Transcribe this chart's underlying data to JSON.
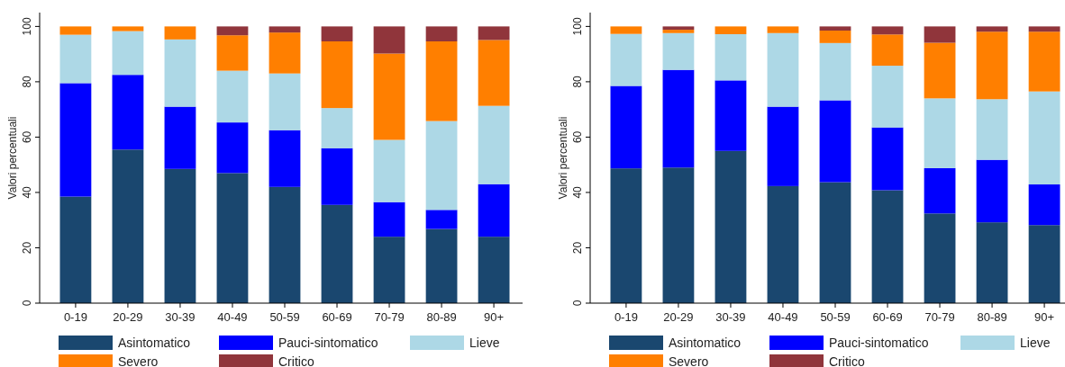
{
  "chart_data": [
    {
      "type": "bar",
      "stacked": true,
      "ylabel": "Valori percentuali",
      "categories": [
        "0-19",
        "20-29",
        "30-39",
        "40-49",
        "50-59",
        "60-69",
        "70-79",
        "80-89",
        "90+"
      ],
      "ylim": [
        0,
        105
      ],
      "yticks": [
        0,
        20,
        40,
        60,
        80,
        100
      ],
      "grid": false,
      "legend": "bottom",
      "series": [
        {
          "name": "Asintomatico",
          "color": "#1a476f",
          "values": [
            38.5,
            55.5,
            48.5,
            47,
            42,
            35.5,
            24,
            26.8,
            24
          ]
        },
        {
          "name": "Pauci-sintomatico",
          "color": "#0000ff",
          "values": [
            41,
            27,
            22.5,
            18.3,
            20.5,
            20.5,
            12.5,
            6.9,
            19
          ]
        },
        {
          "name": "Lieve",
          "color": "#add8e6",
          "values": [
            17.5,
            15.8,
            24.3,
            18.7,
            20.5,
            14.5,
            22.5,
            32.1,
            28.3
          ]
        },
        {
          "name": "Severo",
          "color": "#ff7f00",
          "values": [
            3,
            1.7,
            4.7,
            12.8,
            14.8,
            24.1,
            31.2,
            28.8,
            23.8
          ]
        },
        {
          "name": "Critico",
          "color": "#90353b",
          "values": [
            0,
            0,
            0,
            3.2,
            2.2,
            5.4,
            9.8,
            5.4,
            4.9
          ]
        }
      ]
    },
    {
      "type": "bar",
      "stacked": true,
      "ylabel": "Valori percentuali",
      "categories": [
        "0-19",
        "20-29",
        "30-39",
        "40-49",
        "50-59",
        "60-69",
        "70-79",
        "80-89",
        "90+"
      ],
      "ylim": [
        0,
        105
      ],
      "yticks": [
        0,
        20,
        40,
        60,
        80,
        100
      ],
      "grid": false,
      "legend": "bottom",
      "series": [
        {
          "name": "Asintomatico",
          "color": "#1a476f",
          "values": [
            48.7,
            49,
            55,
            42.3,
            43.7,
            40.8,
            32.4,
            29.2,
            28.2
          ]
        },
        {
          "name": "Pauci-sintomatico",
          "color": "#0000ff",
          "values": [
            29.8,
            35.3,
            25.5,
            28.7,
            29.6,
            22.7,
            16.4,
            22.6,
            14.7
          ]
        },
        {
          "name": "Lieve",
          "color": "#add8e6",
          "values": [
            18.8,
            13.3,
            16.7,
            26.6,
            20.7,
            22.3,
            25.2,
            21.9,
            33.6
          ]
        },
        {
          "name": "Severo",
          "color": "#ff7f00",
          "values": [
            2.7,
            1.2,
            2.8,
            2.4,
            4.5,
            11.3,
            20.1,
            24.4,
            21.6
          ]
        },
        {
          "name": "Critico",
          "color": "#90353b",
          "values": [
            0,
            1.2,
            0,
            0,
            1.5,
            2.9,
            5.9,
            1.9,
            1.9
          ]
        }
      ]
    }
  ]
}
